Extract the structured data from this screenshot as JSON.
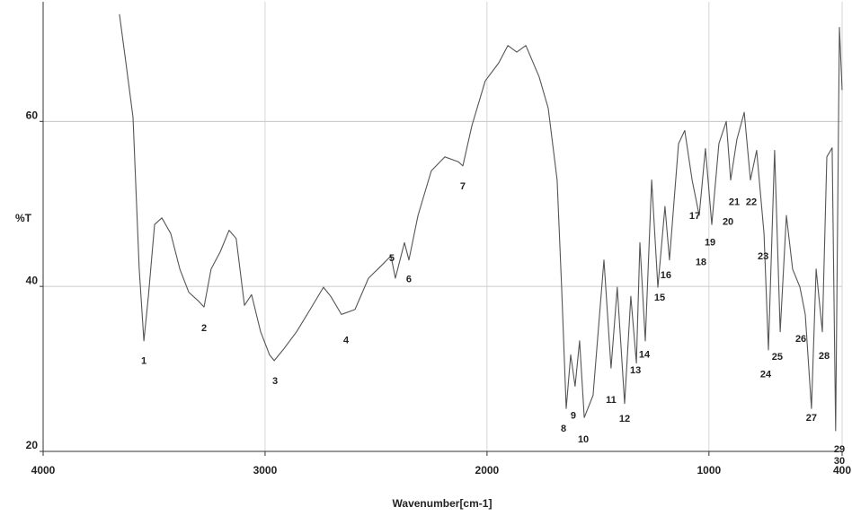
{
  "chart_data": {
    "type": "line",
    "xlabel": "Wavenumber[cm-1]",
    "ylabel": "%T",
    "xlim": [
      4000,
      400
    ],
    "ylim": [
      20,
      74.5
    ],
    "xticks": [
      4000,
      3000,
      2000,
      1000,
      400
    ],
    "yticks": [
      20,
      40,
      60
    ],
    "grid": true,
    "color": "#555555",
    "x": [
      3656,
      3627,
      3595,
      3567,
      3546,
      3526,
      3498,
      3465,
      3425,
      3384,
      3344,
      3303,
      3275,
      3243,
      3202,
      3162,
      3130,
      3093,
      3061,
      3020,
      2980,
      2959,
      2919,
      2858,
      2797,
      2737,
      2704,
      2656,
      2595,
      2534,
      2473,
      2433,
      2413,
      2372,
      2352,
      2311,
      2251,
      2190,
      2129,
      2109,
      2068,
      2008,
      1947,
      1906,
      1866,
      1825,
      1765,
      1724,
      1684,
      1664,
      1643,
      1623,
      1603,
      1583,
      1562,
      1522,
      1473,
      1441,
      1413,
      1380,
      1352,
      1327,
      1311,
      1287,
      1258,
      1230,
      1198,
      1178,
      1137,
      1109,
      1076,
      1044,
      1016,
      987,
      955,
      922,
      902,
      874,
      841,
      813,
      785,
      752,
      732,
      704,
      679,
      651,
      623,
      590,
      566,
      538,
      517,
      489,
      469,
      445,
      429,
      412,
      400
    ],
    "values": [
      73.0,
      67.1,
      60.5,
      42.1,
      33.4,
      38.8,
      47.5,
      48.3,
      46.4,
      42.1,
      39.3,
      38.3,
      37.5,
      42.1,
      44.2,
      46.8,
      45.8,
      37.7,
      39.0,
      34.5,
      31.7,
      31.0,
      32.3,
      34.5,
      37.2,
      39.9,
      38.8,
      36.6,
      37.2,
      41.0,
      42.6,
      43.7,
      41.0,
      45.3,
      43.2,
      48.6,
      54.0,
      55.7,
      55.1,
      54.6,
      59.5,
      64.9,
      67.1,
      69.2,
      68.4,
      69.2,
      65.4,
      61.6,
      52.9,
      39.9,
      25.2,
      31.7,
      27.9,
      33.4,
      24.1,
      26.8,
      43.2,
      30.1,
      39.9,
      25.8,
      38.8,
      30.7,
      45.3,
      33.4,
      52.9,
      39.9,
      49.7,
      43.2,
      57.3,
      58.9,
      52.9,
      48.6,
      56.7,
      47.5,
      57.3,
      60.0,
      52.9,
      57.8,
      61.1,
      52.9,
      56.5,
      46.4,
      32.3,
      56.5,
      34.5,
      48.6,
      42.1,
      39.9,
      36.6,
      25.2,
      42.1,
      34.5,
      55.7,
      56.8,
      22.5,
      71.4,
      63.8
    ],
    "annotations": [
      {
        "text": "1",
        "x": 3546,
        "y": 30.9
      },
      {
        "text": "2",
        "x": 3275,
        "y": 34.9
      },
      {
        "text": "3",
        "x": 2955,
        "y": 28.5
      },
      {
        "text": "4",
        "x": 2635,
        "y": 33.4
      },
      {
        "text": "5",
        "x": 2429,
        "y": 43.4
      },
      {
        "text": "6",
        "x": 2352,
        "y": 40.8
      },
      {
        "text": "7",
        "x": 2109,
        "y": 52.1
      },
      {
        "text": "8",
        "x": 1655,
        "y": 22.7
      },
      {
        "text": "9",
        "x": 1611,
        "y": 24.3
      },
      {
        "text": "10",
        "x": 1566,
        "y": 21.4
      },
      {
        "text": "11",
        "x": 1441,
        "y": 26.2
      },
      {
        "text": "12",
        "x": 1380,
        "y": 23.9
      },
      {
        "text": "13",
        "x": 1331,
        "y": 29.8
      },
      {
        "text": "14",
        "x": 1291,
        "y": 31.7
      },
      {
        "text": "15",
        "x": 1222,
        "y": 38.6
      },
      {
        "text": "16",
        "x": 1194,
        "y": 41.3
      },
      {
        "text": "17",
        "x": 1064,
        "y": 48.5
      },
      {
        "text": "18",
        "x": 1036,
        "y": 42.9
      },
      {
        "text": "19",
        "x": 995,
        "y": 45.3
      },
      {
        "text": "20",
        "x": 914,
        "y": 47.8
      },
      {
        "text": "21",
        "x": 886,
        "y": 50.2
      },
      {
        "text": "22",
        "x": 809,
        "y": 50.2
      },
      {
        "text": "23",
        "x": 756,
        "y": 43.6
      },
      {
        "text": "24",
        "x": 744,
        "y": 29.3
      },
      {
        "text": "25",
        "x": 692,
        "y": 31.4
      },
      {
        "text": "26",
        "x": 586,
        "y": 33.6
      },
      {
        "text": "27",
        "x": 538,
        "y": 24.0
      },
      {
        "text": "28",
        "x": 481,
        "y": 31.5
      },
      {
        "text": "29",
        "x": 412,
        "y": 20.2
      },
      {
        "text": "30",
        "x": 412,
        "y": 18.8
      }
    ]
  }
}
